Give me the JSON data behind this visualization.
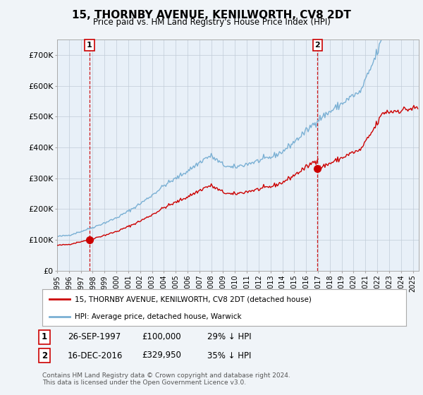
{
  "title": "15, THORNBY AVENUE, KENILWORTH, CV8 2DT",
  "subtitle": "Price paid vs. HM Land Registry's House Price Index (HPI)",
  "legend_line1": "15, THORNBY AVENUE, KENILWORTH, CV8 2DT (detached house)",
  "legend_line2": "HPI: Average price, detached house, Warwick",
  "sale1_label": "1",
  "sale1_date": "26-SEP-1997",
  "sale1_price": "£100,000",
  "sale1_hpi": "29% ↓ HPI",
  "sale1_year": 1997.73,
  "sale1_value": 100000,
  "sale2_label": "2",
  "sale2_date": "16-DEC-2016",
  "sale2_price": "£329,950",
  "sale2_hpi": "35% ↓ HPI",
  "sale2_year": 2016.96,
  "sale2_value": 329950,
  "hpi_color": "#7ab0d4",
  "price_color": "#cc0000",
  "dashed_color": "#cc0000",
  "marker_color": "#cc0000",
  "ylim": [
    0,
    750000
  ],
  "yticks": [
    0,
    100000,
    200000,
    300000,
    400000,
    500000,
    600000,
    700000
  ],
  "ytick_labels": [
    "£0",
    "£100K",
    "£200K",
    "£300K",
    "£400K",
    "£500K",
    "£600K",
    "£700K"
  ],
  "xlim_start": 1995.0,
  "xlim_end": 2025.5,
  "footer": "Contains HM Land Registry data © Crown copyright and database right 2024.\nThis data is licensed under the Open Government Licence v3.0.",
  "background_color": "#f0f4f8",
  "plot_bg_color": "#e8f0f8",
  "grid_color": "#c0ccd8"
}
